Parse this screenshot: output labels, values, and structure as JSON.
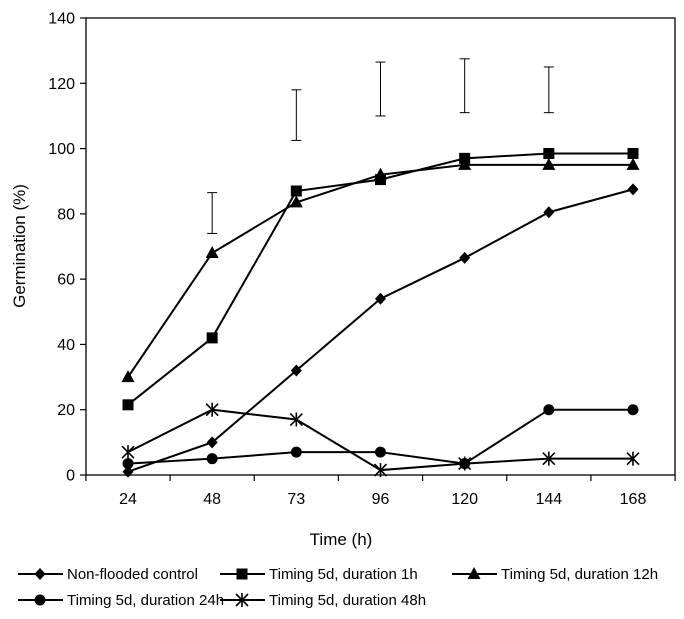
{
  "chart_data": {
    "type": "line",
    "title": "",
    "xlabel": "Time (h)",
    "ylabel": "Germination (%)",
    "categories": [
      "24",
      "48",
      "73",
      "96",
      "120",
      "144",
      "168"
    ],
    "ylim": [
      0,
      140
    ],
    "yticks": [
      0,
      20,
      40,
      60,
      80,
      100,
      120,
      140
    ],
    "grid": false,
    "legend_position": "bottom",
    "series": [
      {
        "name": "Non-flooded control",
        "marker": "diamond",
        "values": [
          1,
          10,
          32,
          54,
          66.5,
          80.5,
          87.5
        ]
      },
      {
        "name": "Timing 5d, duration 1h",
        "marker": "square",
        "values": [
          21.5,
          42,
          87,
          90.5,
          97,
          98.5,
          98.5
        ]
      },
      {
        "name": "Timing 5d, duration 12h",
        "marker": "triangle",
        "values": [
          30,
          68,
          83.5,
          92,
          95,
          95,
          95
        ]
      },
      {
        "name": "Timing 5d, duration 24h",
        "marker": "circle",
        "values": [
          3.5,
          5,
          7,
          7,
          3.5,
          20,
          20
        ]
      },
      {
        "name": "Timing 5d, duration 48h",
        "marker": "star",
        "values": [
          7,
          20,
          17,
          1.5,
          3.5,
          5,
          5
        ]
      }
    ],
    "error_bars": [
      {
        "category": "48",
        "low": 74,
        "high": 86.5
      },
      {
        "category": "73",
        "low": 102.5,
        "high": 118
      },
      {
        "category": "96",
        "low": 110,
        "high": 126.5
      },
      {
        "category": "120",
        "low": 111,
        "high": 127.5
      },
      {
        "category": "144",
        "low": 111,
        "high": 125
      }
    ]
  }
}
